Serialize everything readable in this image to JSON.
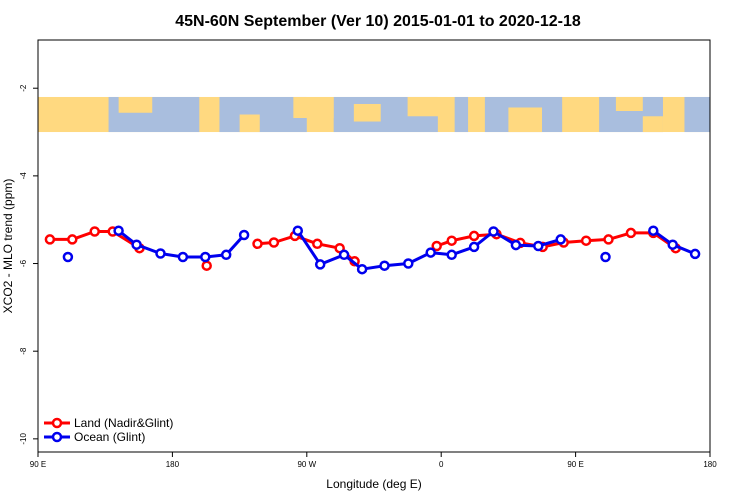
{
  "chart_data": {
    "type": "line",
    "title": "45N-60N September (Ver 10)   2015-01-01 to 2020-12-18",
    "xlabel": "Longitude (deg E)",
    "ylabel": "XCO2 - MLO trend (ppm)",
    "x_ticks": [
      {
        "value": 90,
        "label": "90 E"
      },
      {
        "value": 180,
        "label": "180"
      },
      {
        "value": 270,
        "label": "90 W"
      },
      {
        "value": 360,
        "label": "0"
      },
      {
        "value": 450,
        "label": "90 E"
      },
      {
        "value": 540,
        "label": "180"
      }
    ],
    "y_ticks": [
      -2,
      -4,
      -6,
      -8,
      -10
    ],
    "xlim": [
      90,
      540
    ],
    "ylim": [
      -10.3,
      -0.9
    ],
    "map_band": {
      "ymin": -3.0,
      "ymax": -2.2,
      "land_color": "#FFD980",
      "ocean_color": "#A9BEDE"
    },
    "legend": {
      "position": "bottom-left",
      "entries": [
        "Land (Nadir&Glint)",
        "Ocean (Glint)"
      ]
    },
    "series": [
      {
        "name": "Land (Nadir&Glint)",
        "color": "#FF0000",
        "segments": [
          [
            [
              98,
              -5.45
            ],
            [
              113,
              -5.45
            ],
            [
              128,
              -5.27
            ],
            [
              140,
              -5.27
            ],
            [
              158,
              -5.65
            ]
          ],
          [
            [
              203,
              -6.05
            ]
          ],
          [
            [
              237,
              -5.55
            ],
            [
              248,
              -5.52
            ],
            [
              262,
              -5.37
            ],
            [
              277,
              -5.55
            ],
            [
              292,
              -5.65
            ],
            [
              302,
              -5.95
            ]
          ],
          [
            [
              357,
              -5.6
            ],
            [
              367,
              -5.48
            ],
            [
              382,
              -5.37
            ],
            [
              397,
              -5.33
            ],
            [
              413,
              -5.53
            ],
            [
              428,
              -5.62
            ],
            [
              442,
              -5.52
            ],
            [
              457,
              -5.48
            ],
            [
              472,
              -5.45
            ],
            [
              487,
              -5.3
            ],
            [
              502,
              -5.3
            ],
            [
              517,
              -5.65
            ]
          ]
        ]
      },
      {
        "name": "Ocean (Glint)",
        "color": "#0000EE",
        "segments": [
          [
            [
              110,
              -5.85
            ]
          ],
          [
            [
              144,
              -5.25
            ],
            [
              156,
              -5.57
            ],
            [
              172,
              -5.77
            ],
            [
              187,
              -5.85
            ],
            [
              202,
              -5.85
            ],
            [
              216,
              -5.8
            ],
            [
              228,
              -5.35
            ]
          ],
          [
            [
              264,
              -5.25
            ],
            [
              279,
              -6.02
            ],
            [
              295,
              -5.8
            ],
            [
              307,
              -6.13
            ],
            [
              322,
              -6.05
            ],
            [
              338,
              -6.0
            ],
            [
              353,
              -5.75
            ],
            [
              367,
              -5.8
            ],
            [
              382,
              -5.62
            ],
            [
              395,
              -5.27
            ],
            [
              410,
              -5.58
            ],
            [
              425,
              -5.6
            ],
            [
              440,
              -5.45
            ]
          ],
          [
            [
              470,
              -5.85
            ]
          ],
          [
            [
              502,
              -5.25
            ],
            [
              515,
              -5.57
            ],
            [
              530,
              -5.78
            ]
          ]
        ]
      }
    ]
  }
}
